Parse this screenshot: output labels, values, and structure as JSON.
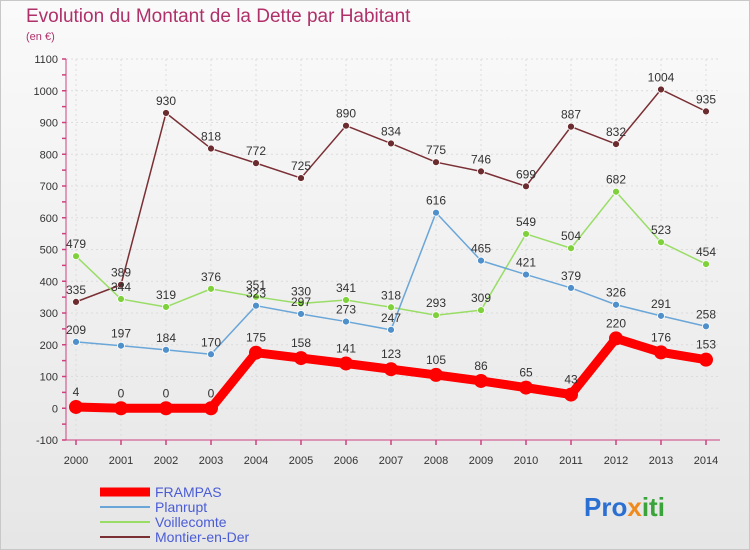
{
  "title": "Evolution du Montant de la Dette par Habitant",
  "subtitle": "(en €)",
  "brand": "Proxiti",
  "chart_data": {
    "type": "line",
    "title": "Evolution du Montant de la Dette par Habitant",
    "subtitle": "(en €)",
    "x": [
      "2000",
      "2001",
      "2002",
      "2003",
      "2004",
      "2005",
      "2006",
      "2007",
      "2008",
      "2009",
      "2010",
      "2011",
      "2012",
      "2013",
      "2014"
    ],
    "ylim": [
      -100,
      1100
    ],
    "yticks": [
      "-100",
      "0",
      "100",
      "200",
      "300",
      "400",
      "500",
      "600",
      "700",
      "800",
      "900",
      "1000",
      "1100"
    ],
    "grid": true,
    "legend": "bottom-left",
    "series": [
      {
        "name": "Montier-en-Der",
        "color": "#7a2f35",
        "marker": "#6b2c2f",
        "values": [
          335,
          389,
          930,
          818,
          772,
          725,
          890,
          834,
          775,
          746,
          699,
          887,
          832,
          1004,
          935
        ],
        "labels": [
          "335",
          "389",
          "930",
          "818",
          "772",
          "725",
          "890",
          "834",
          "775",
          "746",
          "699",
          "887",
          "832",
          "1004",
          "935"
        ]
      },
      {
        "name": "Voillecomte",
        "color": "#99dd66",
        "marker": "#7fd13b",
        "values": [
          479,
          344,
          319,
          376,
          351,
          330,
          341,
          318,
          293,
          309,
          549,
          504,
          682,
          523,
          454
        ],
        "labels": [
          "479",
          "344",
          "319",
          "376",
          "351",
          "330",
          "341",
          "318",
          "293",
          "309",
          "549",
          "504",
          "682",
          "523",
          "454"
        ]
      },
      {
        "name": "Planrupt",
        "color": "#6aa6d8",
        "marker": "#4f8fca",
        "values": [
          209,
          197,
          184,
          170,
          323,
          297,
          273,
          247,
          616,
          465,
          421,
          379,
          326,
          291,
          258
        ],
        "labels": [
          "209",
          "197",
          "184",
          "170",
          "323",
          "297",
          "273",
          "247",
          "616",
          "465",
          "421",
          "379",
          "326",
          "291",
          "258"
        ]
      },
      {
        "name": "FRAMPAS",
        "color": "#ff0000",
        "marker": "#ff0000",
        "values": [
          4,
          0,
          0,
          0,
          175,
          158,
          141,
          123,
          105,
          86,
          65,
          43,
          220,
          176,
          153
        ],
        "labels": [
          "4",
          "0",
          "0",
          "0",
          "175",
          "158",
          "141",
          "123",
          "105",
          "86",
          "65",
          "43",
          "220",
          "176",
          "153"
        ]
      }
    ],
    "legend_order": [
      "FRAMPAS",
      "Planrupt",
      "Voillecomte",
      "Montier-en-Der"
    ]
  }
}
